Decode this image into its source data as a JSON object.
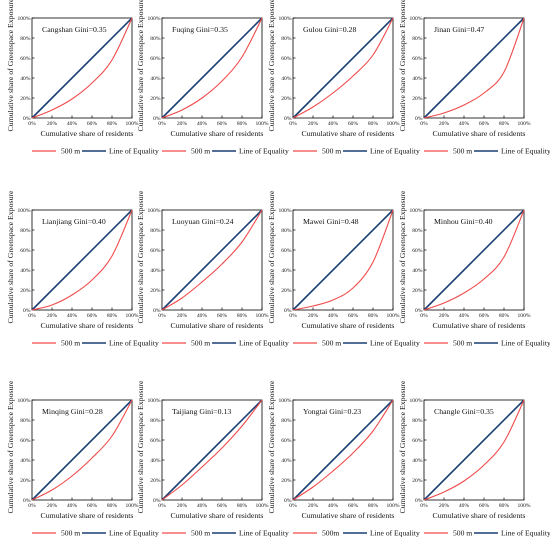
{
  "figure": {
    "xlabel": "Cumulative share of  residents",
    "ylabel": "Cumulative share of  Greenspace Exposure",
    "ticks": [
      "0%",
      "20%",
      "40%",
      "60%",
      "80%",
      "100%"
    ],
    "colors": {
      "curve": "#f04b4b",
      "equality": "#1a3f73",
      "axis": "#000000"
    }
  },
  "chart_data": [
    {
      "type": "line",
      "title": "Cangshan Gini=0.35",
      "xlim": [
        0,
        100
      ],
      "ylim": [
        0,
        100
      ],
      "gini": 0.35,
      "series": [
        {
          "name": "500 m",
          "x": [
            0,
            20,
            40,
            60,
            80,
            100
          ],
          "y": [
            0,
            8,
            19,
            35,
            58,
            100
          ]
        },
        {
          "name": "Line of  Equality",
          "x": [
            0,
            100
          ],
          "y": [
            0,
            100
          ]
        }
      ]
    },
    {
      "type": "line",
      "title": "Fuqing Gini=0.35",
      "xlim": [
        0,
        100
      ],
      "ylim": [
        0,
        100
      ],
      "gini": 0.35,
      "series": [
        {
          "name": "500 m",
          "x": [
            0,
            20,
            40,
            60,
            80,
            100
          ],
          "y": [
            0,
            8,
            20,
            37,
            61,
            100
          ]
        },
        {
          "name": "Line of  Equality",
          "x": [
            0,
            100
          ],
          "y": [
            0,
            100
          ]
        }
      ]
    },
    {
      "type": "line",
      "title": "Gulou Gini=0.28",
      "xlim": [
        0,
        100
      ],
      "ylim": [
        0,
        100
      ],
      "gini": 0.28,
      "series": [
        {
          "name": "500 m",
          "x": [
            0,
            20,
            40,
            60,
            80,
            100
          ],
          "y": [
            0,
            11,
            25,
            42,
            63,
            100
          ]
        },
        {
          "name": "Line of  Equality",
          "x": [
            0,
            100
          ],
          "y": [
            0,
            100
          ]
        }
      ]
    },
    {
      "type": "line",
      "title": "Jinan Gini=0.47",
      "xlim": [
        0,
        100
      ],
      "ylim": [
        0,
        100
      ],
      "gini": 0.47,
      "series": [
        {
          "name": "500 m",
          "x": [
            0,
            20,
            40,
            60,
            80,
            100
          ],
          "y": [
            0,
            5,
            13,
            25,
            46,
            100
          ]
        },
        {
          "name": "Line of  Equality",
          "x": [
            0,
            100
          ],
          "y": [
            0,
            100
          ]
        }
      ]
    },
    {
      "type": "line",
      "title": "Lianjiang Gini=0.40",
      "xlim": [
        0,
        100
      ],
      "ylim": [
        0,
        100
      ],
      "gini": 0.4,
      "series": [
        {
          "name": "500 m",
          "x": [
            0,
            20,
            40,
            60,
            80,
            100
          ],
          "y": [
            0,
            5,
            15,
            30,
            54,
            100
          ]
        },
        {
          "name": "Line of  Equality",
          "x": [
            0,
            100
          ],
          "y": [
            0,
            100
          ]
        }
      ]
    },
    {
      "type": "line",
      "title": "Luoyuan Gini=0.24",
      "xlim": [
        0,
        100
      ],
      "ylim": [
        0,
        100
      ],
      "gini": 0.24,
      "series": [
        {
          "name": "500 m",
          "x": [
            0,
            20,
            40,
            60,
            80,
            100
          ],
          "y": [
            0,
            12,
            28,
            46,
            68,
            100
          ]
        },
        {
          "name": "Line of  Equality",
          "x": [
            0,
            100
          ],
          "y": [
            0,
            100
          ]
        }
      ]
    },
    {
      "type": "line",
      "title": "Mawei Gini=0.48",
      "xlim": [
        0,
        100
      ],
      "ylim": [
        0,
        100
      ],
      "gini": 0.48,
      "series": [
        {
          "name": "500 m",
          "x": [
            0,
            20,
            40,
            60,
            80,
            100
          ],
          "y": [
            0,
            4,
            10,
            22,
            48,
            100
          ]
        },
        {
          "name": "Line of  Equality",
          "x": [
            0,
            100
          ],
          "y": [
            0,
            100
          ]
        }
      ]
    },
    {
      "type": "line",
      "title": "Minhou Gini=0.40",
      "xlim": [
        0,
        100
      ],
      "ylim": [
        0,
        100
      ],
      "gini": 0.4,
      "series": [
        {
          "name": "500 m",
          "x": [
            0,
            20,
            40,
            60,
            80,
            100
          ],
          "y": [
            0,
            7,
            17,
            31,
            53,
            100
          ]
        },
        {
          "name": "Line of  Equality",
          "x": [
            0,
            100
          ],
          "y": [
            0,
            100
          ]
        }
      ]
    },
    {
      "type": "line",
      "title": "Minqing Gini=0.28",
      "xlim": [
        0,
        100
      ],
      "ylim": [
        0,
        100
      ],
      "gini": 0.28,
      "series": [
        {
          "name": "500 m",
          "x": [
            0,
            20,
            40,
            60,
            80,
            100
          ],
          "y": [
            0,
            10,
            24,
            42,
            64,
            100
          ]
        },
        {
          "name": "Line of  Equality",
          "x": [
            0,
            100
          ],
          "y": [
            0,
            100
          ]
        }
      ]
    },
    {
      "type": "line",
      "title": "Taijiang Gini=0.13",
      "xlim": [
        0,
        100
      ],
      "ylim": [
        0,
        100
      ],
      "gini": 0.13,
      "series": [
        {
          "name": "500 m",
          "x": [
            0,
            20,
            40,
            60,
            80,
            100
          ],
          "y": [
            0,
            15,
            33,
            52,
            74,
            100
          ]
        },
        {
          "name": "Line of  Equality",
          "x": [
            0,
            100
          ],
          "y": [
            0,
            100
          ]
        }
      ]
    },
    {
      "type": "line",
      "title": "Yongtai Gini=0.23",
      "xlim": [
        0,
        100
      ],
      "ylim": [
        0,
        100
      ],
      "gini": 0.23,
      "series": [
        {
          "name": "500m",
          "x": [
            0,
            20,
            40,
            60,
            80,
            100
          ],
          "y": [
            0,
            13,
            29,
            47,
            69,
            100
          ]
        },
        {
          "name": "Line of  Equality",
          "x": [
            0,
            100
          ],
          "y": [
            0,
            100
          ]
        }
      ]
    },
    {
      "type": "line",
      "title": "Changle Gini=0.35",
      "xlim": [
        0,
        100
      ],
      "ylim": [
        0,
        100
      ],
      "gini": 0.35,
      "series": [
        {
          "name": "500 m",
          "x": [
            0,
            20,
            40,
            60,
            80,
            100
          ],
          "y": [
            0,
            8,
            19,
            35,
            58,
            100
          ]
        },
        {
          "name": "Line of  Equality",
          "x": [
            0,
            100
          ],
          "y": [
            0,
            100
          ]
        }
      ]
    }
  ]
}
